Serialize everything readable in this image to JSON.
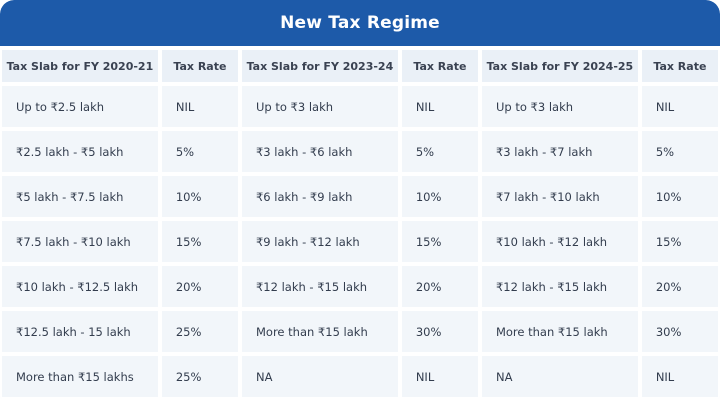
{
  "title": "New Tax Regime",
  "colors": {
    "header_blue": "#1d5aa9",
    "header_row_bg": "#eaf0f7",
    "cell_bg": "#f2f6fa",
    "cell_text": "#333d4e",
    "title_color": "#ffffff"
  },
  "table": {
    "columns": [
      {
        "label": "Tax Slab for FY 2020-21"
      },
      {
        "label": "Tax Rate"
      },
      {
        "label": "Tax Slab for FY 2023-24"
      },
      {
        "label": "Tax Rate"
      },
      {
        "label": "Tax Slab for FY 2024-25"
      },
      {
        "label": "Tax Rate"
      }
    ],
    "rows": [
      [
        "Up to ₹2.5 lakh",
        "NIL",
        "Up to ₹3 lakh",
        "NIL",
        "Up to ₹3 lakh",
        "NIL"
      ],
      [
        "₹2.5 lakh - ₹5 lakh",
        "5%",
        "₹3 lakh - ₹6 lakh",
        "5%",
        "₹3 lakh - ₹7 lakh",
        "5%"
      ],
      [
        "₹5 lakh - ₹7.5 lakh",
        "10%",
        "₹6 lakh - ₹9 lakh",
        "10%",
        "₹7 lakh - ₹10 lakh",
        "10%"
      ],
      [
        "₹7.5 lakh - ₹10 lakh",
        "15%",
        "₹9 lakh - ₹12 lakh",
        "15%",
        "₹10 lakh - ₹12 lakh",
        "15%"
      ],
      [
        "₹10 lakh - ₹12.5 lakh",
        "20%",
        "₹12 lakh - ₹15 lakh",
        "20%",
        "₹12 lakh - ₹15 lakh",
        "20%"
      ],
      [
        "₹12.5 lakh - 15 lakh",
        "25%",
        "More than ₹15 lakh",
        "30%",
        "More than ₹15 lakh",
        "30%"
      ],
      [
        "More than ₹15 lakhs",
        "25%",
        "NA",
        "NIL",
        "NA",
        "NIL"
      ]
    ]
  }
}
